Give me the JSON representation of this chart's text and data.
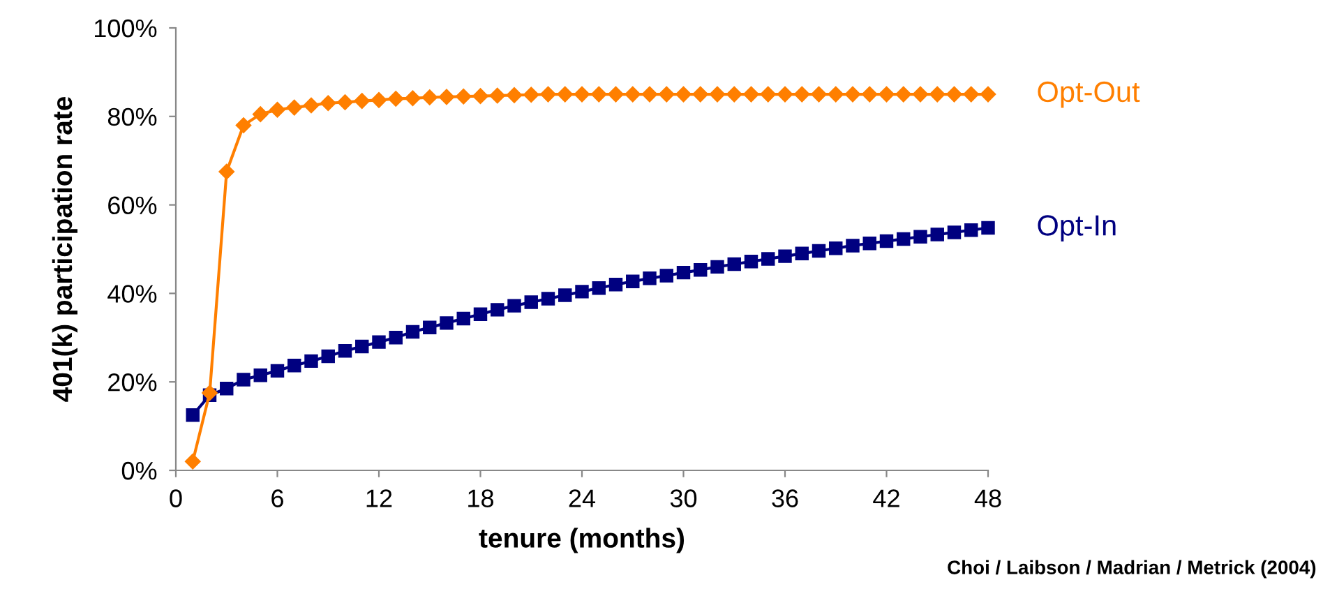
{
  "chart_data": {
    "type": "line",
    "xlabel": "tenure (months)",
    "ylabel": "401(k) participation rate",
    "annotations": [
      "Choi / Laibson / Madrian / Metrick (2004)"
    ],
    "x": [
      1,
      2,
      3,
      4,
      5,
      6,
      7,
      8,
      9,
      10,
      11,
      12,
      13,
      14,
      15,
      16,
      17,
      18,
      19,
      20,
      21,
      22,
      23,
      24,
      25,
      26,
      27,
      28,
      29,
      30,
      31,
      32,
      33,
      34,
      35,
      36,
      37,
      38,
      39,
      40,
      41,
      42,
      43,
      44,
      45,
      46,
      47,
      48
    ],
    "series": [
      {
        "name": "Opt-Out",
        "color": "#ff7f00",
        "marker": "diamond",
        "values": [
          2,
          17.5,
          67.5,
          78,
          80.5,
          81.5,
          82,
          82.5,
          83,
          83.2,
          83.5,
          83.7,
          84,
          84.1,
          84.3,
          84.4,
          84.5,
          84.6,
          84.7,
          84.8,
          84.9,
          85,
          85,
          85,
          85,
          85,
          85,
          85,
          85,
          85,
          85,
          85,
          85,
          85,
          85,
          85,
          85,
          85,
          85,
          85,
          85,
          85,
          85,
          85,
          85,
          85,
          85,
          85
        ]
      },
      {
        "name": "Opt-In",
        "color": "#000080",
        "marker": "square",
        "values": [
          12.5,
          17,
          18.5,
          20.5,
          21.5,
          22.5,
          23.7,
          24.7,
          25.8,
          27,
          28,
          29,
          30,
          31.3,
          32.3,
          33.3,
          34.3,
          35.3,
          36.3,
          37.2,
          38,
          38.8,
          39.6,
          40.4,
          41.2,
          42,
          42.7,
          43.4,
          44,
          44.7,
          45.3,
          46,
          46.6,
          47.2,
          47.8,
          48.4,
          49,
          49.6,
          50.2,
          50.8,
          51.3,
          51.8,
          52.3,
          52.8,
          53.3,
          53.8,
          54.3,
          54.8
        ]
      }
    ],
    "xlim": [
      0,
      48
    ],
    "xticks": [
      0,
      6,
      12,
      18,
      24,
      30,
      36,
      42,
      48
    ],
    "ylim": [
      0,
      100
    ],
    "yticks": [
      {
        "value": 0,
        "label": "0%"
      },
      {
        "value": 20,
        "label": "20%"
      },
      {
        "value": 40,
        "label": "40%"
      },
      {
        "value": 60,
        "label": "60%"
      },
      {
        "value": 80,
        "label": "80%"
      },
      {
        "value": 100,
        "label": "100%"
      }
    ],
    "grid": false,
    "legend": false,
    "line_style": "solid"
  }
}
